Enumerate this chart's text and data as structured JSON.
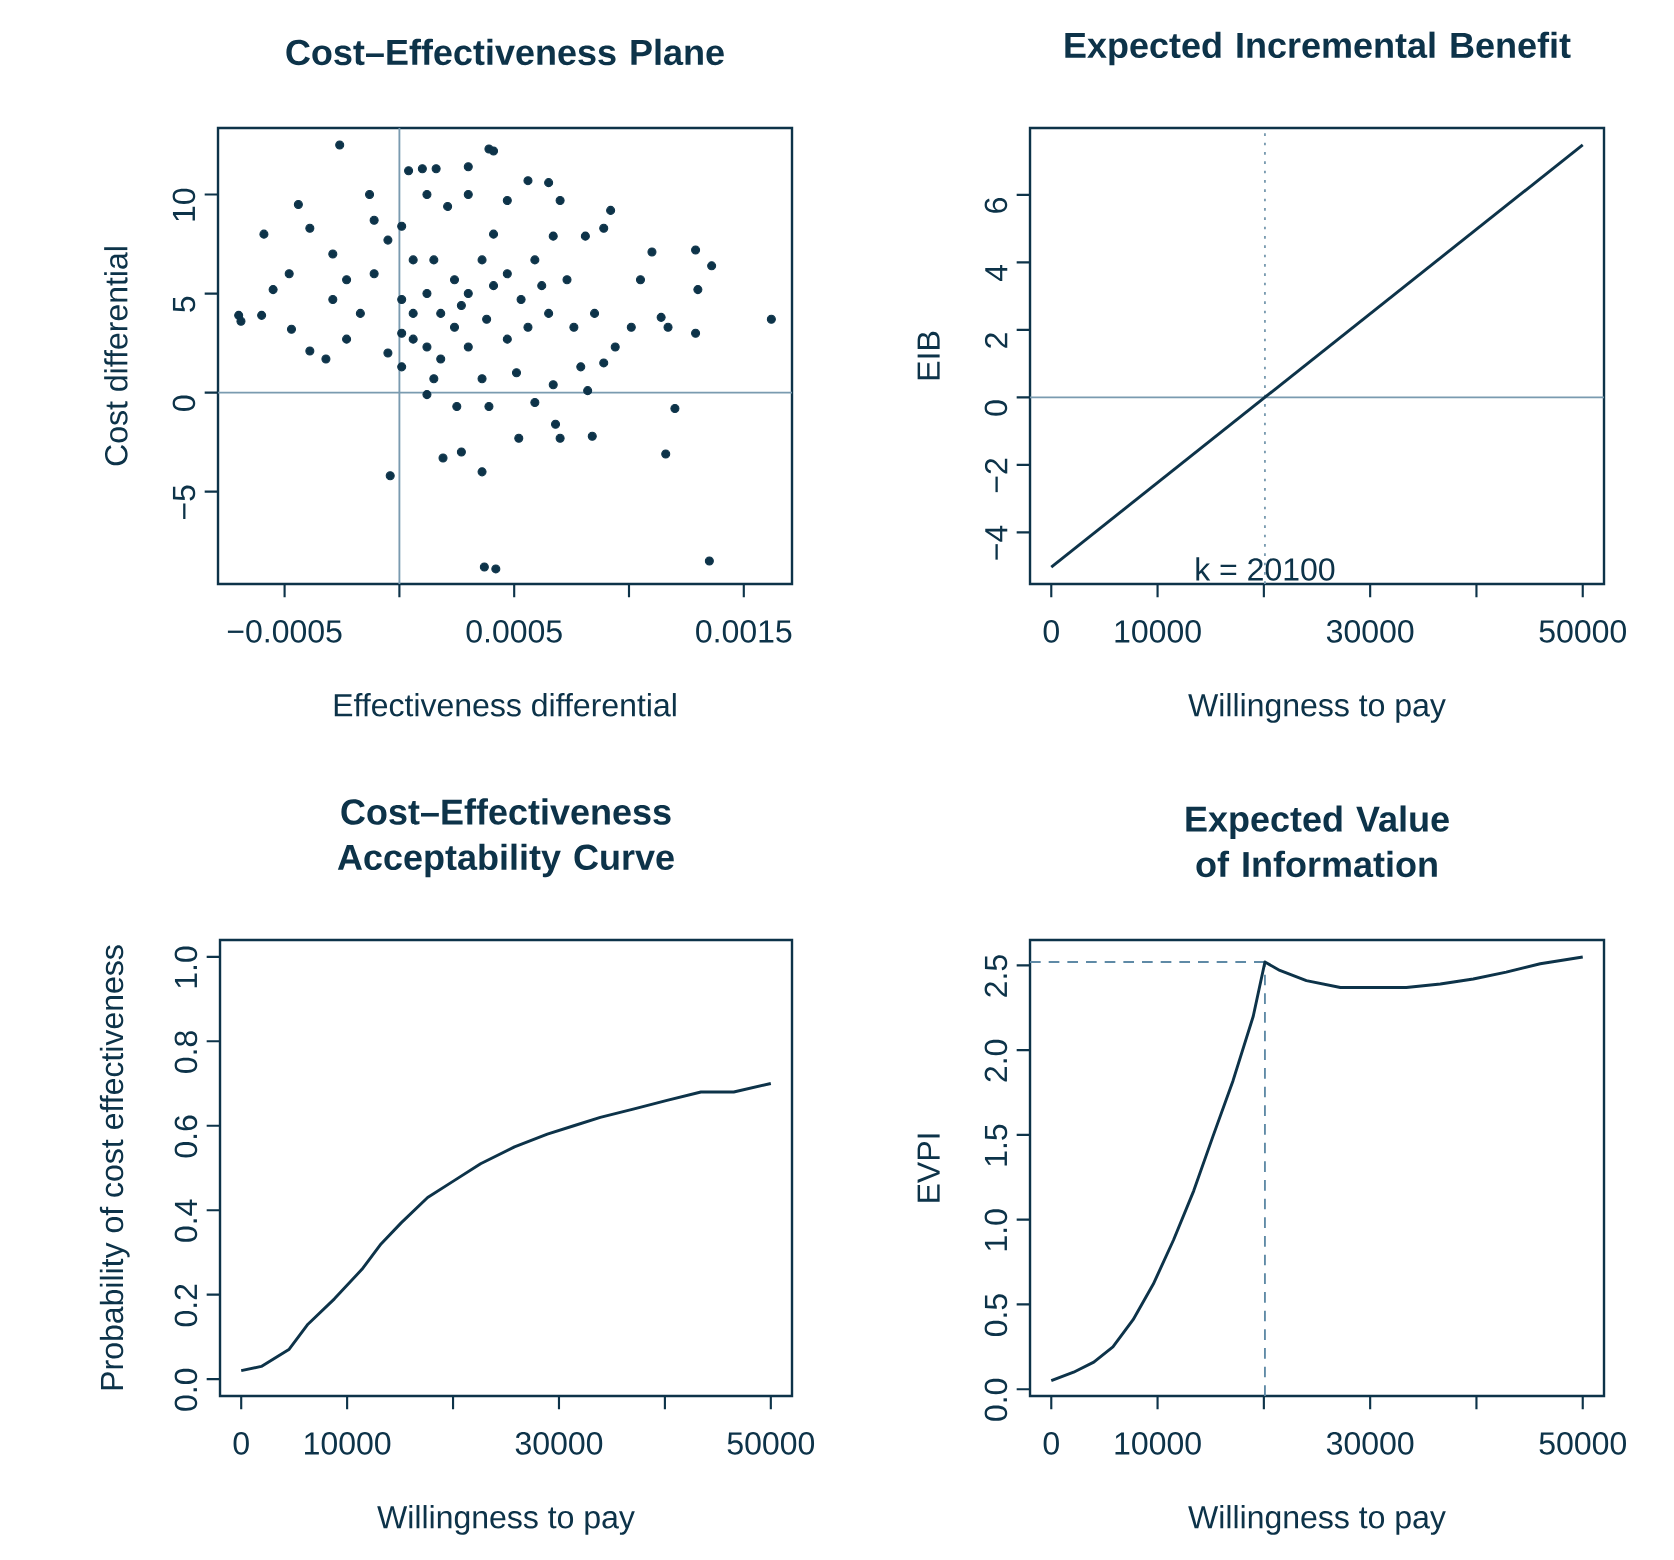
{
  "chart_data": [
    {
      "type": "scatter",
      "title": "Cost–Effectiveness Plane",
      "xlabel": "Effectiveness differential",
      "ylabel": "Cost differential",
      "color": "#0d3349",
      "marker": "circle",
      "x": [
        -0.00026,
        0.00039,
        0.00041,
        -0.00059,
        -0.0007,
        -0.00069,
        -0.0006,
        -0.00055,
        -0.00048,
        -0.00044,
        -0.00047,
        -0.00039,
        -0.00032,
        -0.00039,
        -0.00029,
        -0.00013,
        4e-05,
        0.0001,
        0.00016,
        0.0003,
        0.00056,
        0.00065,
        0.00092,
        0.00089,
        0.0011,
        0.00129,
        0.00136,
        0.0013,
        0.00162,
        0.00129,
        0.00117,
        0.00114,
        0.00105,
        0.0012,
        0.00116,
        0.00135,
        0.00037,
        0.00042,
        -4e-05,
        0.00019,
        0.00027,
        0.00036,
        0.00025,
        0.00039,
        0.00052,
        0.00068,
        0.0007,
        0.00084,
        0.00059,
        0.00082,
        0.00012,
        0.00067,
        0.00079,
        0.00089,
        0.00094,
        0.00101,
        0.00085,
        0.00076,
        0.00073,
        0.00081,
        0.00067,
        0.0007,
        -0.00011,
        -5e-05,
        1e-05,
        6e-05,
        0.00012,
        0.00018,
        0.00024,
        0.0003,
        0.00036,
        0.00041,
        0.00047,
        0.00053,
        0.00059,
        6e-05,
        0.00012,
        0.0003,
        0.00047,
        -0.00017,
        -0.00023,
        -5e-05,
        1e-05,
        0.00015,
        0.00036,
        0.00051,
        0.00021,
        0.0003,
        0.00047,
        0.00012,
        -0.00011,
        -0.00023,
        -0.00029,
        0.00024,
        0.00015,
        1e-05,
        6e-05,
        0.00027,
        0.00038,
        0.00056,
        0.00065,
        0.00062,
        0.00041,
        1e-05,
        0.00018
      ],
      "values": [
        12.5,
        12.3,
        12.2,
        8.0,
        3.9,
        3.6,
        3.9,
        5.2,
        6.0,
        9.5,
        3.2,
        2.1,
        1.7,
        8.3,
        7.0,
        10.0,
        11.2,
        11.3,
        11.3,
        11.4,
        10.7,
        10.6,
        9.2,
        8.3,
        7.1,
        7.2,
        6.4,
        5.2,
        3.7,
        3.0,
        3.3,
        3.8,
        5.7,
        -0.8,
        -3.1,
        -8.5,
        -8.8,
        -8.9,
        -4.2,
        -3.3,
        -3.0,
        -4.0,
        -0.7,
        -0.7,
        -2.3,
        -1.6,
        -2.3,
        -2.2,
        -0.5,
        0.1,
        -0.1,
        0.4,
        1.3,
        1.5,
        2.3,
        3.3,
        4.0,
        3.3,
        5.7,
        7.9,
        7.9,
        9.7,
        6.0,
        7.7,
        8.4,
        6.7,
        5.0,
        4.0,
        3.3,
        5.0,
        6.7,
        8.0,
        6.0,
        4.7,
        6.7,
        2.7,
        2.3,
        2.3,
        2.7,
        4.0,
        2.7,
        2.0,
        1.3,
        0.7,
        0.7,
        1.0,
        9.4,
        10.0,
        9.7,
        10.0,
        8.7,
        5.7,
        4.7,
        5.7,
        6.7,
        4.7,
        4.0,
        4.4,
        3.7,
        3.3,
        4.0,
        5.4,
        5.4,
        3.0,
        1.7
      ],
      "xlim": [
        -0.00079,
        0.00171
      ],
      "ylim": [
        -9.66,
        13.36
      ],
      "xticks": [
        {
          "value": -0.0005,
          "label": "−0.0005"
        },
        {
          "value": 0,
          "label": null
        },
        {
          "value": 0.0005,
          "label": "0.0005"
        },
        {
          "value": 0.001,
          "label": null
        },
        {
          "value": 0.0015,
          "label": "0.0015"
        }
      ],
      "yticks": [
        {
          "value": -5,
          "label": "−5"
        },
        0,
        5,
        10
      ],
      "ref_lines": [
        {
          "axis": "x",
          "value": 0,
          "color": "#7a9bb0"
        },
        {
          "axis": "y",
          "value": 0,
          "color": "#7a9bb0"
        }
      ]
    },
    {
      "type": "line",
      "title": "Expected Incremental Benefit",
      "xlabel": "Willingness to pay",
      "ylabel": "EIB",
      "color": "#0d3349",
      "x": [
        0,
        50000
      ],
      "values": [
        -5.03,
        7.48
      ],
      "xlim": [
        -2000,
        52000
      ],
      "ylim": [
        -5.53,
        7.98
      ],
      "xticks": [
        0,
        10000,
        {
          "value": 20000,
          "label": null
        },
        30000,
        {
          "value": 40000,
          "label": null
        },
        50000
      ],
      "yticks": [
        {
          "value": -4,
          "label": "−4"
        },
        {
          "value": -2,
          "label": "−2"
        },
        0,
        2,
        4,
        6
      ],
      "ref_lines": [
        {
          "axis": "y",
          "value": 0,
          "color": "#7a9bb0"
        },
        {
          "axis": "x",
          "value": 20100,
          "label": "k = 20100",
          "color": "#7a9bb0",
          "line_style": "dotted"
        }
      ]
    },
    {
      "type": "line",
      "title": "Cost–Effectiveness Acceptability Curve",
      "xlabel": "Willingness to pay",
      "ylabel": "Probability of cost effectiveness",
      "color": "#0d3349",
      "x": [
        0,
        1900,
        4500,
        6300,
        8800,
        11400,
        13200,
        15100,
        17600,
        20100,
        22600,
        25800,
        28900,
        31400,
        33900,
        37100,
        40200,
        43400,
        46500,
        50000
      ],
      "values": [
        0.02,
        0.03,
        0.07,
        0.13,
        0.19,
        0.26,
        0.32,
        0.37,
        0.43,
        0.47,
        0.51,
        0.55,
        0.58,
        0.6,
        0.62,
        0.64,
        0.66,
        0.68,
        0.68,
        0.7
      ],
      "xlim": [
        -2000,
        52000
      ],
      "ylim": [
        -0.04,
        1.04
      ],
      "xticks": [
        0,
        10000,
        {
          "value": 20000,
          "label": null
        },
        30000,
        {
          "value": 40000,
          "label": null
        },
        50000
      ],
      "yticks": [
        {
          "value": 0,
          "label": "0.0"
        },
        0.2,
        0.4,
        0.6,
        0.8,
        {
          "value": 1,
          "label": "1.0"
        }
      ]
    },
    {
      "type": "line",
      "title": "Expected Value of Information",
      "xlabel": "Willingness to pay",
      "ylabel": "EVPI",
      "x": [
        0,
        2100,
        4000,
        5800,
        7700,
        9600,
        11500,
        13400,
        15200,
        17100,
        19000,
        20100,
        21500,
        24000,
        27200,
        30300,
        33400,
        36600,
        39700,
        42800,
        46000,
        50000
      ],
      "series": [
        {
          "color": "#0d3349",
          "values": [
            0.05,
            0.1,
            0.16,
            0.25,
            0.41,
            0.62,
            0.88,
            1.17,
            1.49,
            1.82,
            2.2,
            2.52,
            2.47,
            2.41,
            2.37,
            2.37,
            2.37,
            2.39,
            2.42,
            2.46,
            2.51,
            2.55
          ]
        }
      ],
      "ref_lines": [
        {
          "axis": "x",
          "value": 20100,
          "color": "#5f8aa6",
          "line_style": "dashed"
        },
        {
          "axis": "y",
          "value": 2.52,
          "color": "#5f8aa6",
          "line_style": "dashed"
        }
      ],
      "xlim": [
        -2000,
        52000
      ],
      "ylim": [
        -0.04,
        2.65
      ],
      "xticks": [
        0,
        10000,
        {
          "value": 20000,
          "label": null
        },
        30000,
        {
          "value": 40000,
          "label": null
        },
        50000
      ],
      "yticks": [
        {
          "value": 0,
          "label": "0.0"
        },
        {
          "value": 0.5,
          "label": "0.5"
        },
        {
          "value": 1,
          "label": "1.0"
        },
        {
          "value": 1.5,
          "label": "1.5"
        },
        {
          "value": 2,
          "label": "2.0"
        },
        {
          "value": 2.5,
          "label": "2.5"
        }
      ]
    }
  ]
}
